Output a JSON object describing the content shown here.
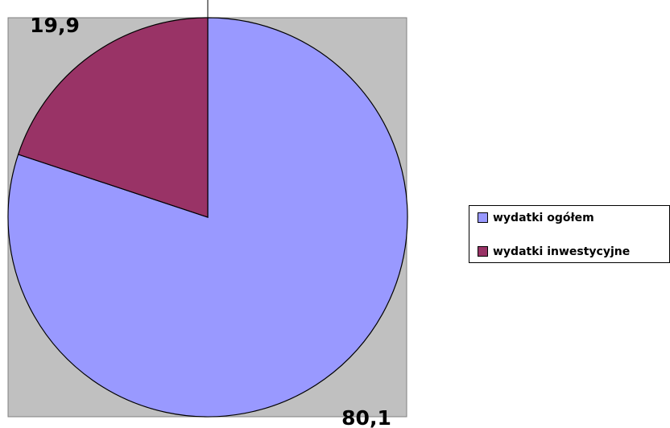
{
  "chart_data": {
    "type": "pie",
    "categories": [
      "wydatki ogółem",
      "wydatki inwestycyjne"
    ],
    "values": [
      80.1,
      19.9
    ],
    "value_labels": [
      "80,1",
      "19,9"
    ],
    "colors": [
      "#9999ff",
      "#993366"
    ]
  }
}
